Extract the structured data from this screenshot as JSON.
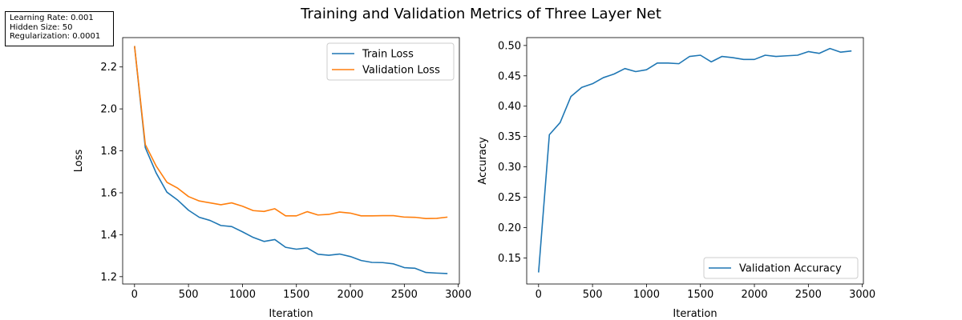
{
  "figure": {
    "suptitle": "Training and Validation Metrics of Three Layer Net"
  },
  "info_box": {
    "lines": [
      "Learning Rate: 0.001",
      "Hidden Size: 50",
      "Regularization: 0.0001"
    ]
  },
  "chart_data": [
    {
      "type": "line",
      "title": "",
      "xlabel": "Iteration",
      "ylabel": "Loss",
      "xlim": [
        -110,
        3010
      ],
      "ylim": [
        1.165,
        2.34
      ],
      "xticks": [
        0,
        500,
        1000,
        1500,
        2000,
        2500,
        3000
      ],
      "yticks": [
        1.2,
        1.4,
        1.6,
        1.8,
        2.0,
        2.2
      ],
      "ytick_decimals": 1,
      "legend": "top-right",
      "grid": false,
      "x": [
        0,
        100,
        200,
        300,
        400,
        500,
        600,
        700,
        800,
        900,
        1000,
        1100,
        1200,
        1300,
        1400,
        1500,
        1600,
        1700,
        1800,
        1900,
        2000,
        2100,
        2200,
        2300,
        2400,
        2500,
        2600,
        2700,
        2800,
        2900
      ],
      "series": [
        {
          "name": "Train Loss",
          "color": "#1f77b4",
          "values": [
            2.3,
            1.815,
            1.695,
            1.603,
            1.565,
            1.517,
            1.483,
            1.468,
            1.444,
            1.439,
            1.414,
            1.387,
            1.368,
            1.377,
            1.34,
            1.331,
            1.337,
            1.307,
            1.302,
            1.308,
            1.296,
            1.277,
            1.268,
            1.267,
            1.261,
            1.243,
            1.24,
            1.22,
            1.217,
            1.215
          ]
        },
        {
          "name": "Validation Loss",
          "color": "#ff7f0e",
          "values": [
            2.3,
            1.83,
            1.728,
            1.65,
            1.622,
            1.582,
            1.561,
            1.552,
            1.543,
            1.552,
            1.536,
            1.515,
            1.511,
            1.524,
            1.49,
            1.49,
            1.51,
            1.494,
            1.497,
            1.508,
            1.503,
            1.49,
            1.49,
            1.491,
            1.491,
            1.484,
            1.483,
            1.477,
            1.478,
            1.484
          ]
        }
      ]
    },
    {
      "type": "line",
      "title": "",
      "xlabel": "Iteration",
      "ylabel": "Accuracy",
      "xlim": [
        -110,
        3010
      ],
      "ylim": [
        0.107,
        0.513
      ],
      "xticks": [
        0,
        500,
        1000,
        1500,
        2000,
        2500,
        3000
      ],
      "yticks": [
        0.15,
        0.2,
        0.25,
        0.3,
        0.35,
        0.4,
        0.45,
        0.5
      ],
      "ytick_decimals": 2,
      "legend": "bottom-right",
      "grid": false,
      "x": [
        0,
        100,
        200,
        300,
        400,
        500,
        600,
        700,
        800,
        900,
        1000,
        1100,
        1200,
        1300,
        1400,
        1500,
        1600,
        1700,
        1800,
        1900,
        2000,
        2100,
        2200,
        2300,
        2400,
        2500,
        2600,
        2700,
        2800,
        2900
      ],
      "series": [
        {
          "name": "Validation Accuracy",
          "color": "#1f77b4",
          "values": [
            0.126,
            0.353,
            0.373,
            0.416,
            0.431,
            0.437,
            0.447,
            0.453,
            0.462,
            0.457,
            0.46,
            0.471,
            0.471,
            0.47,
            0.482,
            0.484,
            0.473,
            0.482,
            0.48,
            0.477,
            0.477,
            0.484,
            0.482,
            0.483,
            0.484,
            0.49,
            0.487,
            0.495,
            0.489,
            0.491
          ]
        }
      ]
    }
  ]
}
